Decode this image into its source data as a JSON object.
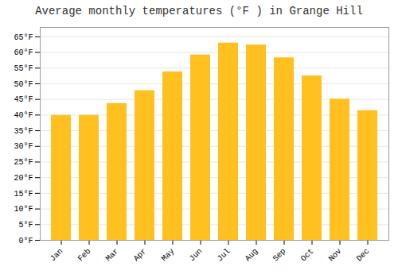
{
  "chart_data": {
    "type": "bar",
    "title": "Average monthly temperatures (°F ) in Grange Hill",
    "categories": [
      "Jan",
      "Feb",
      "Mar",
      "Apr",
      "May",
      "Jun",
      "Jul",
      "Aug",
      "Sep",
      "Oct",
      "Nov",
      "Dec"
    ],
    "values": [
      39.9,
      39.9,
      43.7,
      47.8,
      53.8,
      59.2,
      63.0,
      62.4,
      58.3,
      52.5,
      45.1,
      41.4
    ],
    "color": "#FFC020",
    "ylim": [
      0,
      68
    ],
    "yticks": [
      {
        "value": 0,
        "label": "0°F"
      },
      {
        "value": 5,
        "label": "5°F"
      },
      {
        "value": 10,
        "label": "10°F"
      },
      {
        "value": 15,
        "label": "15°F"
      },
      {
        "value": 20,
        "label": "20°F"
      },
      {
        "value": 25,
        "label": "25°F"
      },
      {
        "value": 30,
        "label": "30°F"
      },
      {
        "value": 35,
        "label": "35°F"
      },
      {
        "value": 40,
        "label": "40°F"
      },
      {
        "value": 45,
        "label": "45°F"
      },
      {
        "value": 50,
        "label": "50°F"
      },
      {
        "value": 55,
        "label": "55°F"
      },
      {
        "value": 60,
        "label": "60°F"
      },
      {
        "value": 65,
        "label": "65°F"
      }
    ],
    "grid": true
  }
}
